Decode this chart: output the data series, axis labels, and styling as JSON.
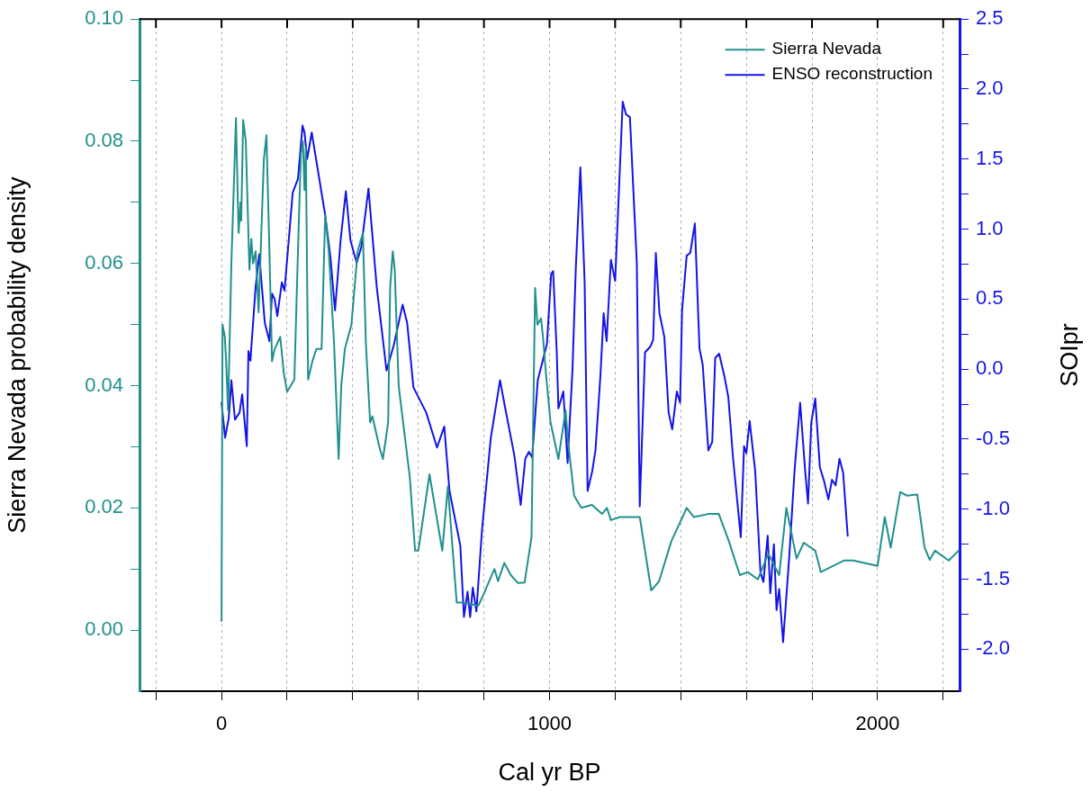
{
  "chart_data": {
    "type": "line",
    "xlabel": "Cal yr BP",
    "ylabel": "Sierra Nevada probability density",
    "y2label": "SOIpr",
    "xlim": [
      -250,
      2250
    ],
    "xticks": [
      {
        "value": -200,
        "label": null
      },
      {
        "value": 0,
        "label": "0"
      },
      {
        "value": 200,
        "label": null
      },
      {
        "value": 400,
        "label": null
      },
      {
        "value": 600,
        "label": null
      },
      {
        "value": 800,
        "label": null
      },
      {
        "value": 1000,
        "label": "1000"
      },
      {
        "value": 1200,
        "label": null
      },
      {
        "value": 1400,
        "label": null
      },
      {
        "value": 1600,
        "label": null
      },
      {
        "value": 1800,
        "label": null
      },
      {
        "value": 2000,
        "label": "2000"
      },
      {
        "value": 2200,
        "label": null
      }
    ],
    "ylim": [
      -0.01,
      0.1
    ],
    "yticks": [
      {
        "value": 0,
        "label": "0.00"
      },
      {
        "value": 0.01,
        "label": null
      },
      {
        "value": 0.02,
        "label": "0.02"
      },
      {
        "value": 0.03,
        "label": null
      },
      {
        "value": 0.04,
        "label": "0.04"
      },
      {
        "value": 0.05,
        "label": null
      },
      {
        "value": 0.06,
        "label": "0.06"
      },
      {
        "value": 0.07,
        "label": null
      },
      {
        "value": 0.08,
        "label": "0.08"
      },
      {
        "value": 0.09,
        "label": null
      },
      {
        "value": 0.1,
        "label": "0.10"
      }
    ],
    "y2lim": [
      -2.3,
      2.5
    ],
    "y2ticks": [
      {
        "value": -2,
        "label": "-2.0"
      },
      {
        "value": -1.75,
        "label": null
      },
      {
        "value": -1.5,
        "label": "-1.5"
      },
      {
        "value": -1.25,
        "label": null
      },
      {
        "value": -1,
        "label": "-1.0"
      },
      {
        "value": -0.75,
        "label": null
      },
      {
        "value": -0.5,
        "label": "-0.5"
      },
      {
        "value": -0.25,
        "label": null
      },
      {
        "value": 0,
        "label": "0.0"
      },
      {
        "value": 0.25,
        "label": null
      },
      {
        "value": 0.5,
        "label": "0.5"
      },
      {
        "value": 0.75,
        "label": null
      },
      {
        "value": 1,
        "label": "1.0"
      },
      {
        "value": 1.25,
        "label": null
      },
      {
        "value": 1.5,
        "label": "1.5"
      },
      {
        "value": 1.75,
        "label": null
      },
      {
        "value": 2,
        "label": "2.0"
      },
      {
        "value": 2.25,
        "label": null
      },
      {
        "value": 2.5,
        "label": "2.5"
      }
    ],
    "grid": "x",
    "legend": "top right",
    "series": [
      {
        "name": "Sierra Nevada",
        "color": "#21908c",
        "x": [
          0,
          3,
          10,
          14,
          20,
          30,
          44,
          52,
          58,
          60,
          66,
          74,
          85,
          91,
          96,
          104,
          113,
          129,
          137,
          146,
          154,
          162,
          179,
          190,
          200,
          222,
          233,
          242,
          248,
          253,
          257,
          264,
          277,
          289,
          305,
          316,
          327,
          343,
          357,
          365,
          376,
          396,
          415,
          431,
          440,
          453,
          460,
          481,
          492,
          508,
          514,
          522,
          528,
          540,
          574,
          590,
          600,
          634,
          673,
          690,
          717,
          737,
          783,
          800,
          832,
          843,
          862,
          882,
          904,
          924,
          945,
          956,
          963,
          974,
          980,
          989,
          1003,
          1027,
          1049,
          1056,
          1075,
          1097,
          1129,
          1160,
          1175,
          1187,
          1214,
          1275,
          1310,
          1334,
          1371,
          1418,
          1440,
          1484,
          1516,
          1547,
          1580,
          1604,
          1635,
          1667,
          1700,
          1722,
          1753,
          1775,
          1810,
          1827,
          1857,
          1899,
          1926,
          2000,
          2022,
          2040,
          2069,
          2090,
          2121,
          2143,
          2159,
          2175,
          2217,
          2247
        ],
        "values": [
          0.0015,
          0.05,
          0.048,
          0.044,
          0.036,
          0.06,
          0.0838,
          0.065,
          0.07,
          0.067,
          0.0835,
          0.08,
          0.059,
          0.064,
          0.06,
          0.062,
          0.052,
          0.077,
          0.081,
          0.062,
          0.044,
          0.046,
          0.048,
          0.042,
          0.039,
          0.041,
          0.062,
          0.078,
          0.08,
          0.072,
          0.079,
          0.041,
          0.044,
          0.046,
          0.046,
          0.068,
          0.062,
          0.047,
          0.028,
          0.04,
          0.046,
          0.05,
          0.062,
          0.065,
          0.047,
          0.034,
          0.035,
          0.03,
          0.028,
          0.034,
          0.056,
          0.062,
          0.059,
          0.04,
          0.025,
          0.013,
          0.013,
          0.0255,
          0.013,
          0.0235,
          0.0045,
          0.0045,
          0.004,
          0.006,
          0.01,
          0.008,
          0.011,
          0.009,
          0.0077,
          0.0078,
          0.0152,
          0.056,
          0.05,
          0.051,
          0.048,
          0.042,
          0.034,
          0.028,
          0.036,
          0.031,
          0.022,
          0.02,
          0.0205,
          0.019,
          0.02,
          0.018,
          0.0185,
          0.0185,
          0.0065,
          0.008,
          0.0145,
          0.02,
          0.0185,
          0.019,
          0.019,
          0.0145,
          0.009,
          0.0095,
          0.0083,
          0.0125,
          0.009,
          0.02,
          0.0117,
          0.0143,
          0.013,
          0.0095,
          0.0103,
          0.0114,
          0.0114,
          0.0105,
          0.0185,
          0.0135,
          0.0226,
          0.022,
          0.0222,
          0.0136,
          0.0115,
          0.013,
          0.0114,
          0.013
        ]
      },
      {
        "name": "ENSO reconstruction",
        "color": "#1414e6",
        "axis": "y2",
        "x": [
          0,
          11,
          22,
          30,
          41,
          55,
          63,
          77,
          82,
          88,
          104,
          115,
          132,
          146,
          154,
          162,
          170,
          184,
          192,
          217,
          233,
          247,
          253,
          261,
          275,
          291,
          316,
          332,
          346,
          363,
          379,
          393,
          412,
          426,
          448,
          473,
          503,
          525,
          552,
          566,
          585,
          624,
          657,
          679,
          695,
          717,
          728,
          739,
          750,
          758,
          766,
          777,
          794,
          821,
          849,
          865,
          893,
          912,
          926,
          937,
          947,
          964,
          992,
          1005,
          1011,
          1022,
          1027,
          1042,
          1055,
          1070,
          1080,
          1094,
          1107,
          1116,
          1130,
          1140,
          1155,
          1165,
          1174,
          1187,
          1200,
          1223,
          1233,
          1245,
          1266,
          1275,
          1291,
          1307,
          1316,
          1324,
          1335,
          1350,
          1363,
          1374,
          1388,
          1398,
          1404,
          1418,
          1429,
          1443,
          1457,
          1467,
          1484,
          1496,
          1505,
          1517,
          1533,
          1545,
          1560,
          1583,
          1593,
          1600,
          1610,
          1627,
          1643,
          1652,
          1665,
          1673,
          1684,
          1692,
          1700,
          1712,
          1731,
          1747,
          1764,
          1779,
          1788,
          1798,
          1810,
          1824,
          1837,
          1850,
          1861,
          1872,
          1884,
          1895,
          1909
        ],
        "values": [
          -0.24,
          -0.49,
          -0.35,
          -0.08,
          -0.36,
          -0.31,
          -0.18,
          -0.55,
          0.13,
          0.06,
          0.59,
          0.82,
          0.33,
          0.2,
          0.54,
          0.5,
          0.38,
          0.62,
          0.56,
          1.26,
          1.36,
          1.74,
          1.69,
          1.5,
          1.69,
          1.46,
          1.1,
          0.8,
          0.42,
          0.92,
          1.27,
          0.92,
          0.76,
          0.87,
          1.29,
          0.59,
          -0.01,
          0.17,
          0.46,
          0.33,
          -0.13,
          -0.31,
          -0.56,
          -0.41,
          -0.87,
          -1.13,
          -1.26,
          -1.77,
          -1.59,
          -1.77,
          -1.56,
          -1.73,
          -1.15,
          -0.49,
          -0.08,
          -0.28,
          -0.62,
          -0.97,
          -0.64,
          -0.59,
          -0.63,
          -0.08,
          0.18,
          0.68,
          0.7,
          0.12,
          -0.28,
          -0.16,
          -0.67,
          0,
          0.72,
          1.44,
          0.62,
          -0.87,
          -0.73,
          -0.58,
          -0.05,
          0.4,
          0.2,
          0.78,
          0.63,
          1.91,
          1.82,
          1.8,
          0.76,
          -0.98,
          0.12,
          0.16,
          0.21,
          0.83,
          0.4,
          0.23,
          -0.31,
          -0.43,
          -0.16,
          -0.24,
          0.42,
          0.81,
          0.83,
          1.04,
          0.15,
          0.03,
          -0.58,
          -0.52,
          0.08,
          0.11,
          -0.05,
          -0.2,
          -0.65,
          -1.2,
          -0.55,
          -0.6,
          -0.37,
          -0.73,
          -1.45,
          -1.52,
          -1.19,
          -1.6,
          -1.25,
          -1.72,
          -1.57,
          -1.95,
          -1.33,
          -0.72,
          -0.24,
          -0.72,
          -0.96,
          -0.38,
          -0.21,
          -0.7,
          -0.8,
          -0.93,
          -0.79,
          -0.83,
          -0.64,
          -0.74,
          -1.19
        ]
      }
    ]
  }
}
